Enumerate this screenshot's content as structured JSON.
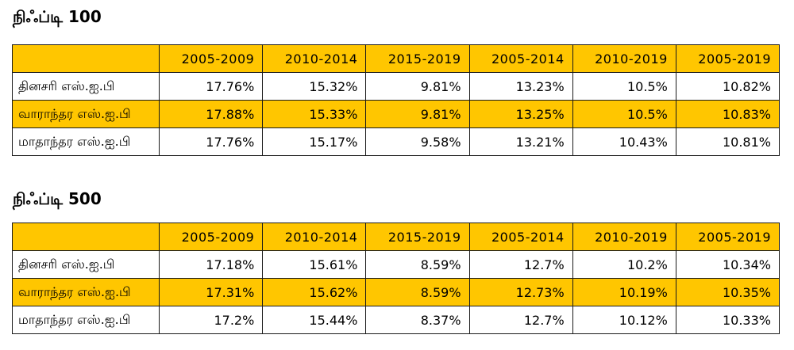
{
  "colors": {
    "highlight": "#ffc600",
    "border": "#1a1a1a"
  },
  "tables": [
    {
      "title": "நிஃப்டி 100",
      "headers": [
        "",
        "2005-2009",
        "2010-2014",
        "2015-2019",
        "2005-2014",
        "2010-2019",
        "2005-2019"
      ],
      "rows": [
        {
          "label": "தினசரி எஸ்.ஐ.பி",
          "values": [
            "17.76%",
            "15.32%",
            "9.81%",
            "13.23%",
            "10.5%",
            "10.82%"
          ]
        },
        {
          "label": "வாராந்தர எஸ்.ஐ.பி",
          "values": [
            "17.88%",
            "15.33%",
            "9.81%",
            "13.25%",
            "10.5%",
            "10.83%"
          ]
        },
        {
          "label": "மாதாந்தர எஸ்.ஐ.பி",
          "values": [
            "17.76%",
            "15.17%",
            "9.58%",
            "13.21%",
            "10.43%",
            "10.81%"
          ]
        }
      ]
    },
    {
      "title": "நிஃப்டி 500",
      "headers": [
        "",
        "2005-2009",
        "2010-2014",
        "2015-2019",
        "2005-2014",
        "2010-2019",
        "2005-2019"
      ],
      "rows": [
        {
          "label": "தினசரி எஸ்.ஐ.பி",
          "values": [
            "17.18%",
            "15.61%",
            "8.59%",
            "12.7%",
            "10.2%",
            "10.34%"
          ]
        },
        {
          "label": "வாராந்தர எஸ்.ஐ.பி",
          "values": [
            "17.31%",
            "15.62%",
            "8.59%",
            "12.73%",
            "10.19%",
            "10.35%"
          ]
        },
        {
          "label": "மாதாந்தர எஸ்.ஐ.பி",
          "values": [
            "17.2%",
            "15.44%",
            "8.37%",
            "12.7%",
            "10.12%",
            "10.33%"
          ]
        }
      ]
    }
  ]
}
